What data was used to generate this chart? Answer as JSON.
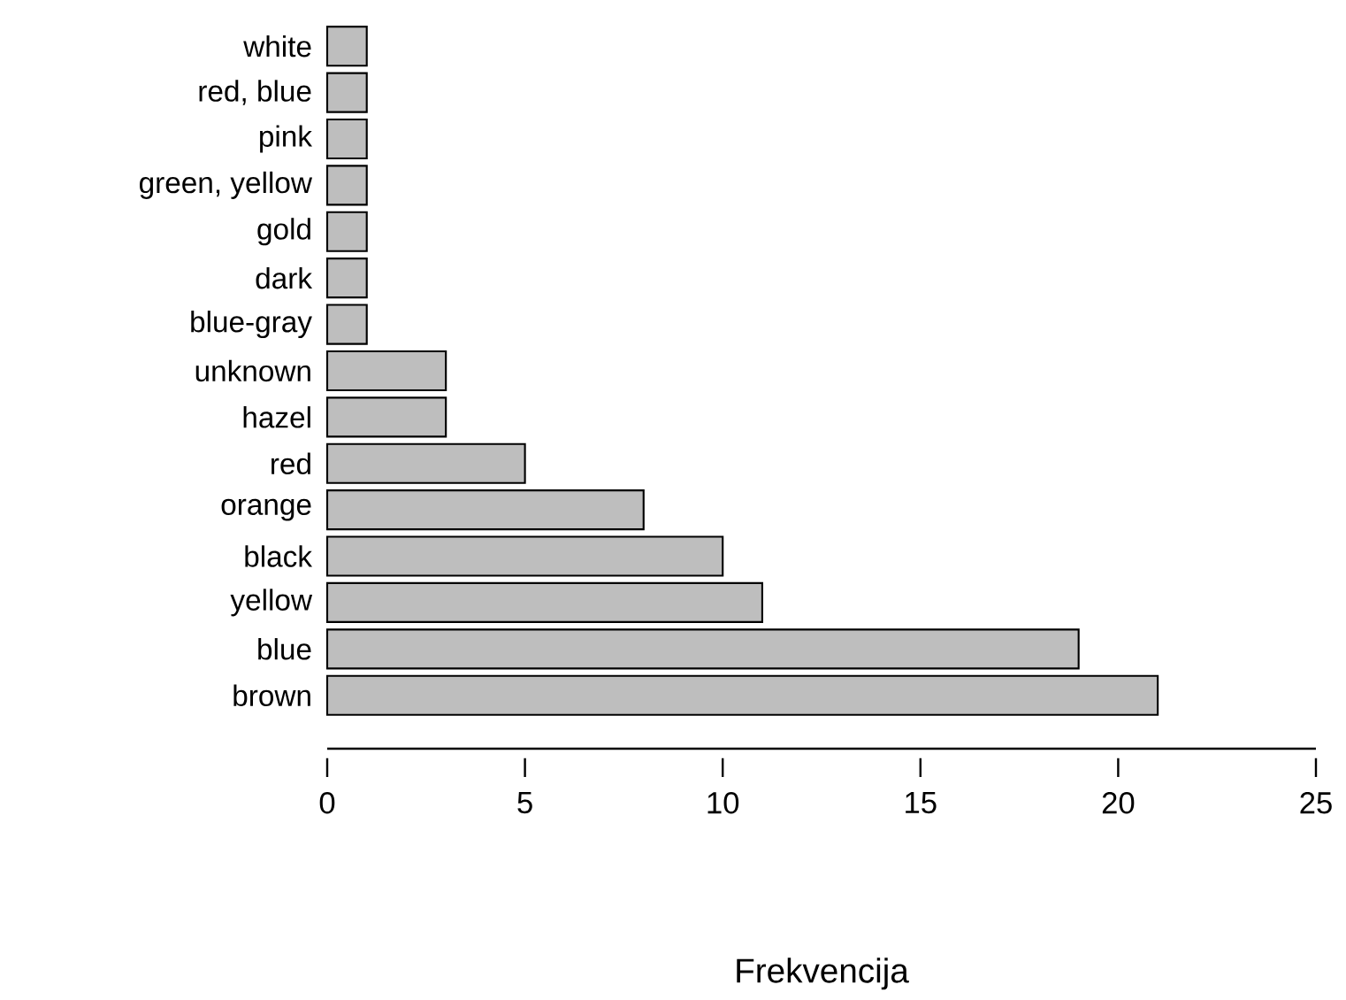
{
  "chart_data": {
    "type": "bar",
    "orientation": "horizontal",
    "xlabel": "Frekvencija",
    "categories": [
      "white",
      "red, blue",
      "pink",
      "green, yellow",
      "gold",
      "dark",
      "blue-gray",
      "unknown",
      "hazel",
      "red",
      "orange",
      "black",
      "yellow",
      "blue",
      "brown"
    ],
    "values": [
      1,
      1,
      1,
      1,
      1,
      1,
      1,
      3,
      3,
      5,
      8,
      10,
      11,
      19,
      21
    ],
    "color": "#bebebe",
    "xlim": [
      0,
      25
    ],
    "xticks": [
      0,
      5,
      10,
      15,
      20,
      25
    ]
  }
}
